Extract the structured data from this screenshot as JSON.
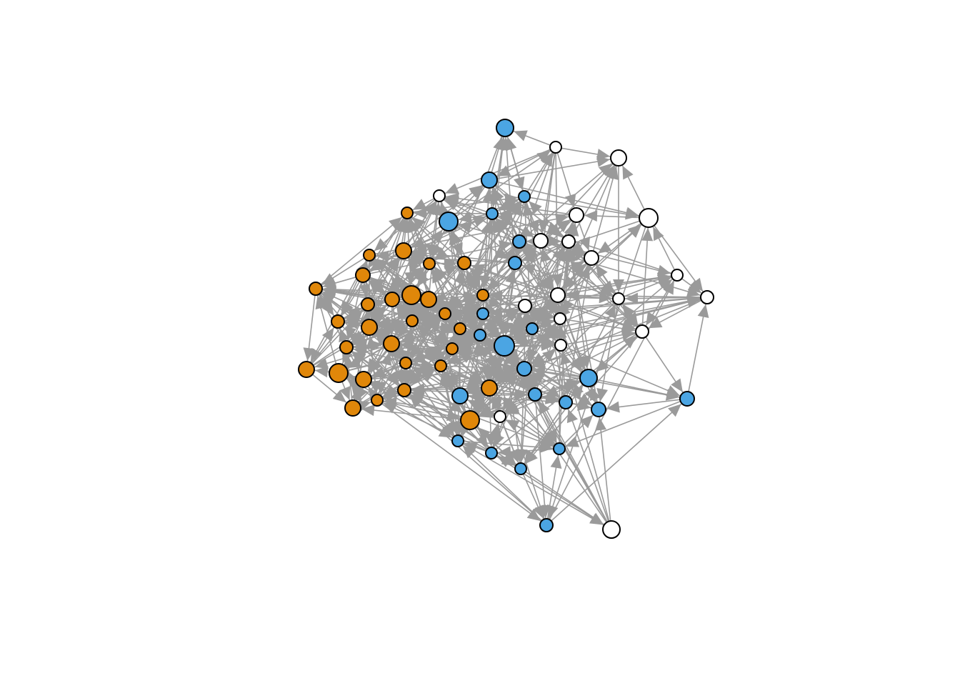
{
  "colors": {
    "orange": "#E0870A",
    "blue": "#4BA5E3",
    "white": "#FFFFFF",
    "edge": "#9A9A9A",
    "background": "#FFFFFF"
  }
}
